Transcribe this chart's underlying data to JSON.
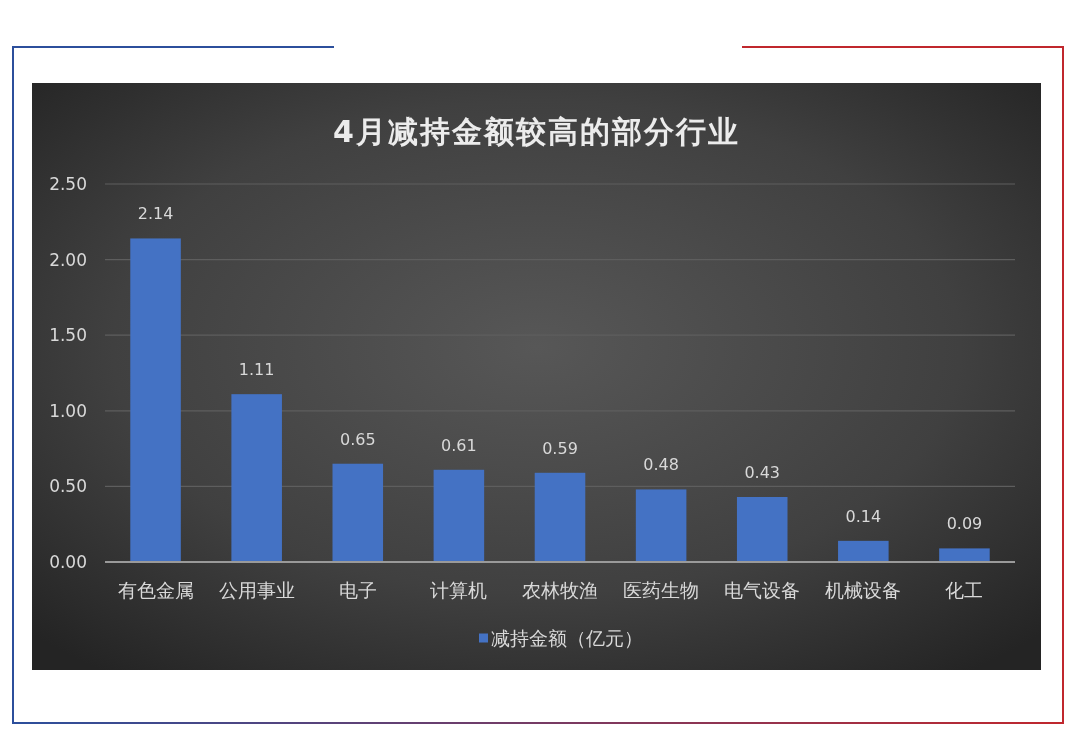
{
  "chart_data": {
    "type": "bar",
    "title": "4月减持金额较高的部分行业",
    "categories": [
      "有色金属",
      "公用事业",
      "电子",
      "计算机",
      "农林牧渔",
      "医药生物",
      "电气设备",
      "机械设备",
      "化工"
    ],
    "series": [
      {
        "name": "减持金额（亿元）",
        "color": "#4472c4",
        "values": [
          2.14,
          1.11,
          0.65,
          0.61,
          0.59,
          0.48,
          0.43,
          0.14,
          0.09
        ]
      }
    ],
    "ylim": [
      0,
      2.5
    ],
    "yticks": [
      {
        "value": 0,
        "label": "0.00"
      },
      {
        "value": 0.5,
        "label": "0.50"
      },
      {
        "value": 1,
        "label": "1.00"
      },
      {
        "value": 1.5,
        "label": "1.50"
      },
      {
        "value": 2,
        "label": "2.00"
      },
      {
        "value": 2.5,
        "label": "2.50"
      }
    ],
    "grid": "y",
    "legend": "bottom",
    "data_labels": true
  }
}
